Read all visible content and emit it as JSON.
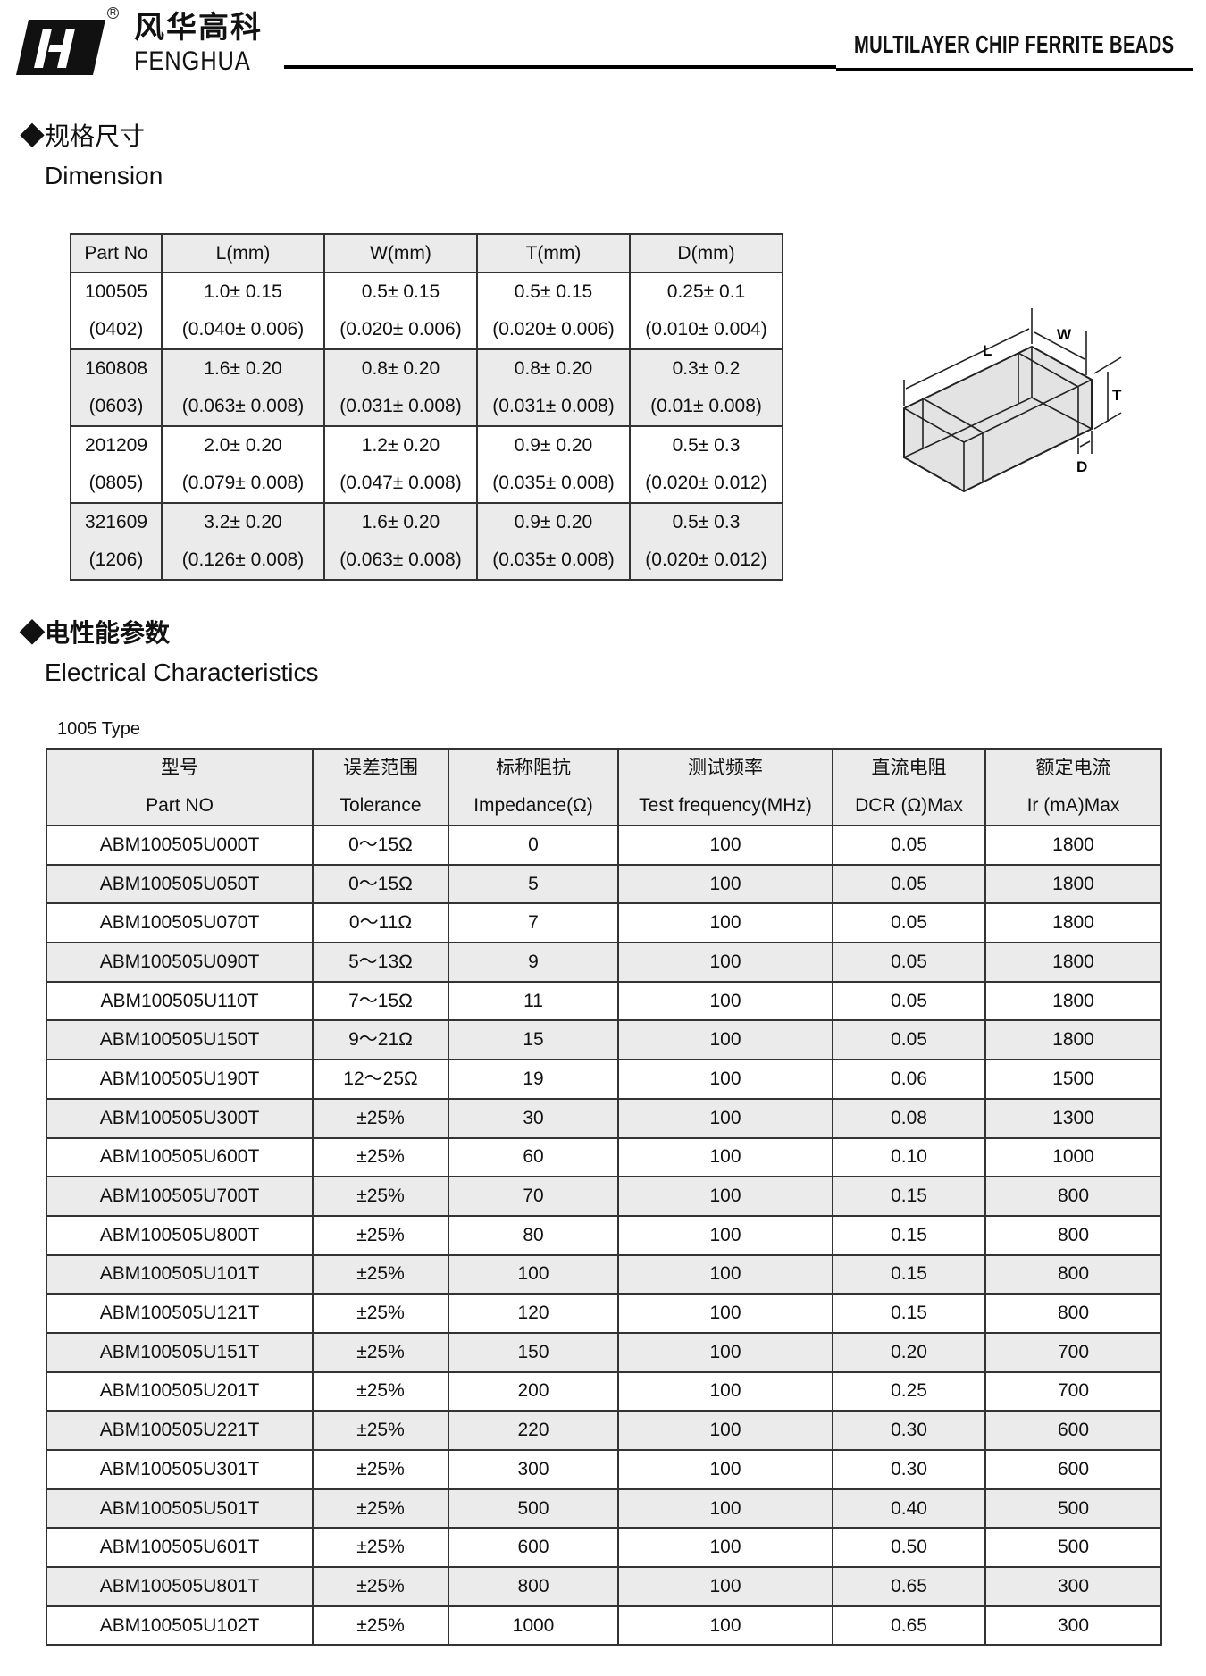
{
  "header": {
    "logo_cn": "风华高科",
    "logo_en": "FENGHUA",
    "registered": "R",
    "banner": "MULTILAYER CHIP FERRITE BEADS"
  },
  "dimension": {
    "title_cn": "◆规格尺寸",
    "title_en": "Dimension",
    "columns": [
      "Part No",
      "L(mm)",
      "W(mm)",
      "T(mm)",
      "D(mm)"
    ],
    "rows": [
      {
        "top": [
          "100505",
          "1.0± 0.15",
          "0.5± 0.15",
          "0.5± 0.15",
          "0.25± 0.1"
        ],
        "bot": [
          "(0402)",
          "(0.040± 0.006)",
          "(0.020± 0.006)",
          "(0.020± 0.006)",
          "(0.010± 0.004)"
        ]
      },
      {
        "top": [
          "160808",
          "1.6± 0.20",
          "0.8± 0.20",
          "0.8± 0.20",
          "0.3± 0.2"
        ],
        "bot": [
          "(0603)",
          "(0.063± 0.008)",
          "(0.031± 0.008)",
          "(0.031± 0.008)",
          "(0.01± 0.008)"
        ]
      },
      {
        "top": [
          "201209",
          "2.0± 0.20",
          "1.2± 0.20",
          "0.9± 0.20",
          "0.5± 0.3"
        ],
        "bot": [
          "(0805)",
          "(0.079± 0.008)",
          "(0.047± 0.008)",
          "(0.035± 0.008)",
          "(0.020± 0.012)"
        ]
      },
      {
        "top": [
          "321609",
          "3.2± 0.20",
          "1.6± 0.20",
          "0.9± 0.20",
          "0.5± 0.3"
        ],
        "bot": [
          "(1206)",
          "(0.126± 0.008)",
          "(0.063± 0.008)",
          "(0.035± 0.008)",
          "(0.020± 0.012)"
        ]
      }
    ],
    "diagram_labels": {
      "L": "L",
      "W": "W",
      "T": "T",
      "D": "D"
    }
  },
  "electrical": {
    "title_cn": "◆电性能参数",
    "title_en": "Electrical Characteristics",
    "type_label": "1005 Type",
    "columns_cn": [
      "型号",
      "误差范围",
      "标称阻抗",
      "测试频率",
      "直流电阻",
      "额定电流"
    ],
    "columns_en": [
      "Part NO",
      "Tolerance",
      "Impedance(Ω)",
      "Test frequency(MHz)",
      "DCR (Ω)Max",
      "Ir (mA)Max"
    ],
    "rows": [
      [
        "ABM100505U000T",
        "0～15Ω",
        "0",
        "100",
        "0.05",
        "1800"
      ],
      [
        "ABM100505U050T",
        "0～15Ω",
        "5",
        "100",
        "0.05",
        "1800"
      ],
      [
        "ABM100505U070T",
        "0～11Ω",
        "7",
        "100",
        "0.05",
        "1800"
      ],
      [
        "ABM100505U090T",
        "5～13Ω",
        "9",
        "100",
        "0.05",
        "1800"
      ],
      [
        "ABM100505U110T",
        "7～15Ω",
        "11",
        "100",
        "0.05",
        "1800"
      ],
      [
        "ABM100505U150T",
        "9～21Ω",
        "15",
        "100",
        "0.05",
        "1800"
      ],
      [
        "ABM100505U190T",
        "12～25Ω",
        "19",
        "100",
        "0.06",
        "1500"
      ],
      [
        "ABM100505U300T",
        "±25%",
        "30",
        "100",
        "0.08",
        "1300"
      ],
      [
        "ABM100505U600T",
        "±25%",
        "60",
        "100",
        "0.10",
        "1000"
      ],
      [
        "ABM100505U700T",
        "±25%",
        "70",
        "100",
        "0.15",
        "800"
      ],
      [
        "ABM100505U800T",
        "±25%",
        "80",
        "100",
        "0.15",
        "800"
      ],
      [
        "ABM100505U101T",
        "±25%",
        "100",
        "100",
        "0.15",
        "800"
      ],
      [
        "ABM100505U121T",
        "±25%",
        "120",
        "100",
        "0.15",
        "800"
      ],
      [
        "ABM100505U151T",
        "±25%",
        "150",
        "100",
        "0.20",
        "700"
      ],
      [
        "ABM100505U201T",
        "±25%",
        "200",
        "100",
        "0.25",
        "700"
      ],
      [
        "ABM100505U221T",
        "±25%",
        "220",
        "100",
        "0.30",
        "600"
      ],
      [
        "ABM100505U301T",
        "±25%",
        "300",
        "100",
        "0.30",
        "600"
      ],
      [
        "ABM100505U501T",
        "±25%",
        "500",
        "100",
        "0.40",
        "500"
      ],
      [
        "ABM100505U601T",
        "±25%",
        "600",
        "100",
        "0.50",
        "500"
      ],
      [
        "ABM100505U801T",
        "±25%",
        "800",
        "100",
        "0.65",
        "300"
      ],
      [
        "ABM100505U102T",
        "±25%",
        "1000",
        "100",
        "0.65",
        "300"
      ]
    ]
  }
}
